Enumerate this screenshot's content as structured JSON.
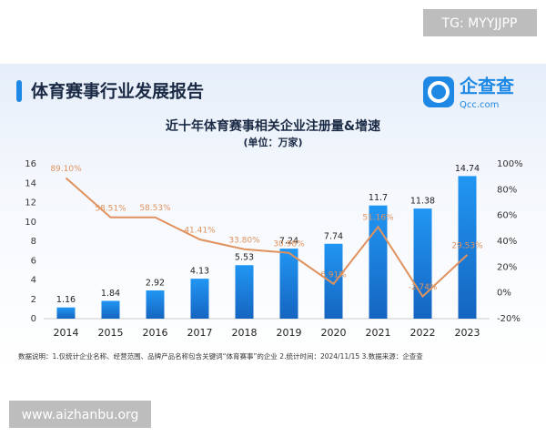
{
  "watermarks": {
    "top": "TG: MYYJJPP",
    "bottom": "www.aizhanbu.org"
  },
  "header": {
    "title": "体育赛事行业发展报告"
  },
  "logo": {
    "name": "企查查",
    "domain": "Qcc.com"
  },
  "chart_data": {
    "type": "bar",
    "title": "近十年体育赛事相关企业注册量&增速",
    "subtitle": "(单位：万家)",
    "categories": [
      "2014",
      "2015",
      "2016",
      "2017",
      "2018",
      "2019",
      "2020",
      "2021",
      "2022",
      "2023"
    ],
    "series": [
      {
        "type": "bar",
        "color": "#1e88e5",
        "values": [
          1.16,
          1.84,
          2.92,
          4.13,
          5.53,
          7.24,
          7.74,
          11.7,
          11.38,
          14.74
        ]
      },
      {
        "type": "line",
        "axis": "y2",
        "color": "#e0925e",
        "values": [
          89.1,
          58.51,
          58.53,
          41.41,
          33.8,
          30.98,
          6.91,
          51.16,
          -2.74,
          29.53
        ],
        "value_labels": [
          "89.10%",
          "58.51%",
          "58.53%",
          "41.41%",
          "33.80%",
          "30.98%",
          "6.91%",
          "51.16%",
          "-2.74%",
          "29.53%"
        ]
      }
    ],
    "ylim": [
      0,
      16
    ],
    "yticks": [
      0,
      2,
      4,
      6,
      8,
      10,
      12,
      14,
      16
    ],
    "y2lim": [
      -20,
      100
    ],
    "y2ticks": [
      {
        "value": -20,
        "label": "-20%"
      },
      {
        "value": 0,
        "label": "0%"
      },
      {
        "value": 20,
        "label": "20%"
      },
      {
        "value": 40,
        "label": "40%"
      },
      {
        "value": 60,
        "label": "60%"
      },
      {
        "value": 80,
        "label": "80%"
      },
      {
        "value": 100,
        "label": "100%"
      }
    ],
    "grid": false,
    "footnote": "数据说明：1.仅统计企业名称、经营范围、品牌产品名称包含关键词“体育赛事”的企业  2.统计时间：2024/11/15  3.数据来源：企查查"
  }
}
